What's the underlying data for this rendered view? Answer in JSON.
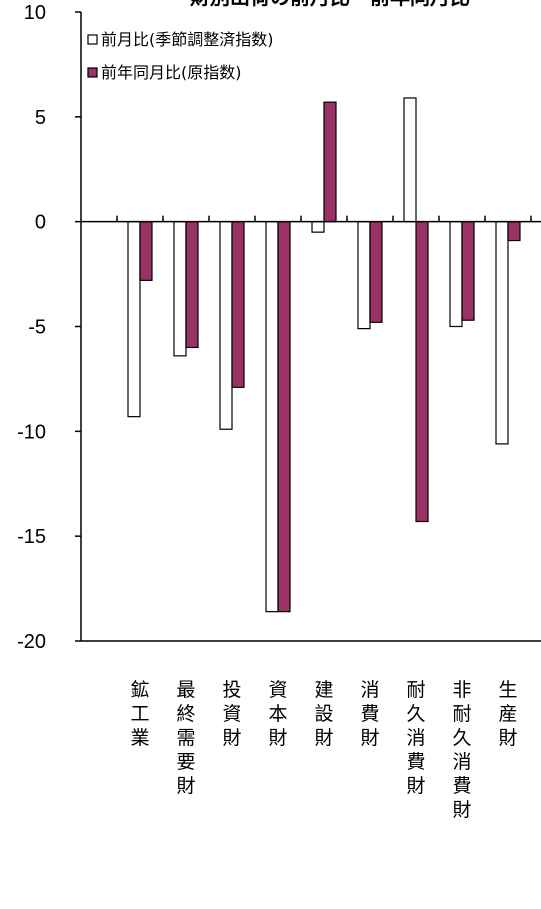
{
  "chart_data": {
    "type": "bar",
    "title": "財別出荷の前月比・前年同月比",
    "categories": [
      "鉱工業",
      "最終需要財",
      "投資財",
      "資本財",
      "建設財",
      "消費財",
      "耐久消費財",
      "非耐久消費財",
      "生産財"
    ],
    "series": [
      {
        "name": "前月比(季節調整済指数)",
        "color": "#ffffff",
        "values": [
          -9.3,
          -6.4,
          -9.9,
          -18.6,
          -0.5,
          -5.1,
          5.9,
          -5.0,
          -10.6
        ]
      },
      {
        "name": "前年同月比(原指数)",
        "color": "#993366",
        "values": [
          -2.8,
          -6.0,
          -7.9,
          -18.6,
          5.7,
          -4.8,
          -14.3,
          -4.7,
          -0.9
        ]
      }
    ],
    "ylim": [
      -20,
      10
    ],
    "yticks": [
      10,
      5,
      0,
      -5,
      -10,
      -15,
      -20
    ],
    "ytick_labels": [
      "10",
      "5",
      "0",
      "-5",
      "-10",
      "-15",
      "-20"
    ],
    "legend_position": "top-left",
    "grid": false
  }
}
